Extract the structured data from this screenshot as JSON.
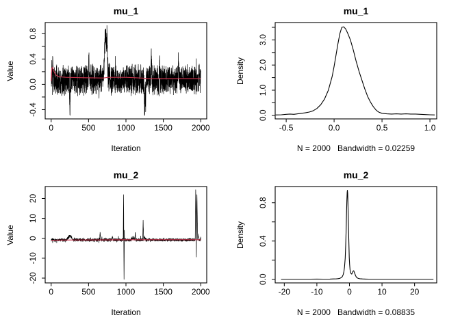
{
  "page": {
    "background": "#ffffff"
  },
  "colors": {
    "axis": "#000000",
    "trace": "#000000",
    "density": "#000000",
    "smooth_line": "#c8354d"
  },
  "chart_data": [
    {
      "id": "mu1-trace",
      "type": "line",
      "title": "mu_1",
      "xlabel": "Iteration",
      "ylabel": "Value",
      "xlim": [
        -80,
        2080
      ],
      "ylim": [
        -0.546,
        0.976
      ],
      "xticks": [
        [
          0,
          "0"
        ],
        [
          500,
          "500"
        ],
        [
          1000,
          "1000"
        ],
        [
          1500,
          "1500"
        ],
        [
          2000,
          "2000"
        ]
      ],
      "yticks": [
        [
          -0.4,
          "-0.4"
        ],
        [
          -0.2,
          ""
        ],
        [
          0,
          "0.0"
        ],
        [
          0.2,
          ""
        ],
        [
          0.4,
          "0.4"
        ],
        [
          0.6,
          ""
        ],
        [
          0.8,
          "0.8"
        ]
      ],
      "series": [
        {
          "name": "trace",
          "role": "trace",
          "color": "#000000",
          "width": 0.7,
          "generator": {
            "seed": 11,
            "n": 2000,
            "mean": 0.07,
            "amp": 0.26,
            "spike_prob": 0.04,
            "spike_amp": 0.22,
            "clamp": [
              -0.49,
              0.93
            ]
          },
          "anomalies": [
            [
              8,
              5,
              0.3
            ],
            [
              22,
              6,
              0.32
            ],
            [
              250,
              7,
              -0.55
            ],
            [
              505,
              10,
              0.34
            ],
            [
              730,
              35,
              0.8
            ],
            [
              748,
              8,
              0.3
            ],
            [
              1250,
              14,
              -0.55
            ],
            [
              1264,
              6,
              -0.34
            ],
            [
              1340,
              10,
              0.4
            ],
            [
              1452,
              8,
              0.3
            ],
            [
              1700,
              9,
              0.33
            ],
            [
              1980,
              6,
              0.25
            ]
          ]
        },
        {
          "name": "smooth",
          "role": "smooth",
          "color": "#c8354d",
          "width": 1.2,
          "points": [
            [
              1,
              0.05
            ],
            [
              8,
              0.25
            ],
            [
              18,
              0.27
            ],
            [
              35,
              0.21
            ],
            [
              60,
              0.15
            ],
            [
              100,
              0.12
            ],
            [
              200,
              0.11
            ],
            [
              400,
              0.105
            ],
            [
              700,
              0.1
            ],
            [
              760,
              0.11
            ],
            [
              1000,
              0.11
            ],
            [
              1200,
              0.1
            ],
            [
              1300,
              0.09
            ],
            [
              1600,
              0.09
            ],
            [
              2000,
              0.09
            ]
          ]
        }
      ]
    },
    {
      "id": "mu1-density",
      "type": "line",
      "title": "mu_1",
      "xlabel": "N = 2000   Bandwidth = 0.02259",
      "ylabel": "Density",
      "n": 2000,
      "bandwidth": 0.02259,
      "xlim": [
        -0.615,
        1.071
      ],
      "ylim": [
        -0.142,
        3.69
      ],
      "xticks": [
        [
          -0.5,
          "-0.5"
        ],
        [
          0,
          "0.0"
        ],
        [
          0.5,
          "0.5"
        ],
        [
          1,
          "1.0"
        ]
      ],
      "yticks": [
        [
          0,
          "0.0"
        ],
        [
          0.5,
          ""
        ],
        [
          1,
          "1.0"
        ],
        [
          1.5,
          ""
        ],
        [
          2,
          "2.0"
        ],
        [
          2.5,
          ""
        ],
        [
          3,
          "3.0"
        ],
        [
          3.5,
          ""
        ]
      ],
      "series": [
        {
          "name": "density",
          "role": "density",
          "color": "#000000",
          "width": 1.1,
          "points": [
            [
              -0.61,
              0.015
            ],
            [
              -0.55,
              0.02
            ],
            [
              -0.5,
              0.04
            ],
            [
              -0.46,
              0.05
            ],
            [
              -0.42,
              0.04
            ],
            [
              -0.38,
              0.06
            ],
            [
              -0.34,
              0.08
            ],
            [
              -0.3,
              0.1
            ],
            [
              -0.26,
              0.13
            ],
            [
              -0.22,
              0.18
            ],
            [
              -0.18,
              0.27
            ],
            [
              -0.14,
              0.42
            ],
            [
              -0.1,
              0.65
            ],
            [
              -0.06,
              1.0
            ],
            [
              -0.02,
              1.55
            ],
            [
              0,
              1.95
            ],
            [
              0.02,
              2.4
            ],
            [
              0.04,
              2.85
            ],
            [
              0.06,
              3.25
            ],
            [
              0.08,
              3.5
            ],
            [
              0.1,
              3.52
            ],
            [
              0.12,
              3.44
            ],
            [
              0.14,
              3.28
            ],
            [
              0.17,
              3.0
            ],
            [
              0.2,
              2.6
            ],
            [
              0.23,
              2.15
            ],
            [
              0.26,
              1.75
            ],
            [
              0.29,
              1.4
            ],
            [
              0.32,
              1.05
            ],
            [
              0.35,
              0.75
            ],
            [
              0.38,
              0.52
            ],
            [
              0.41,
              0.34
            ],
            [
              0.44,
              0.2
            ],
            [
              0.47,
              0.12
            ],
            [
              0.5,
              0.08
            ],
            [
              0.55,
              0.06
            ],
            [
              0.6,
              0.05
            ],
            [
              0.65,
              0.06
            ],
            [
              0.7,
              0.05
            ],
            [
              0.75,
              0.06
            ],
            [
              0.8,
              0.05
            ],
            [
              0.85,
              0.05
            ],
            [
              0.9,
              0.04
            ],
            [
              0.95,
              0.03
            ],
            [
              1.0,
              0.02
            ],
            [
              1.05,
              0.015
            ]
          ]
        }
      ]
    },
    {
      "id": "mu2-trace",
      "type": "line",
      "title": "mu_2",
      "xlabel": "Iteration",
      "ylabel": "Value",
      "xlim": [
        -80,
        2080
      ],
      "ylim": [
        -22.4,
        26.0
      ],
      "xticks": [
        [
          0,
          "0"
        ],
        [
          500,
          "500"
        ],
        [
          1000,
          "1000"
        ],
        [
          1500,
          "1500"
        ],
        [
          2000,
          "2000"
        ]
      ],
      "yticks": [
        [
          -20,
          "-20"
        ],
        [
          -10,
          "-10"
        ],
        [
          0,
          "0"
        ],
        [
          10,
          "10"
        ],
        [
          20,
          "20"
        ]
      ],
      "series": [
        {
          "name": "trace",
          "role": "trace",
          "color": "#000000",
          "width": 0.7,
          "generator": {
            "seed": 23,
            "n": 2000,
            "mean": -0.8,
            "amp": 0.85,
            "spike_prob": 0.03,
            "spike_amp": 1.5,
            "clamp": [
              -20.6,
              24.4
            ]
          },
          "anomalies": [
            [
              250,
              45,
              2.2
            ],
            [
              655,
              8,
              3.9
            ],
            [
              820,
              12,
              1.3
            ],
            [
              968,
              5,
              22.6
            ],
            [
              974,
              4,
              -19.9
            ],
            [
              1095,
              25,
              1.2
            ],
            [
              1125,
              7,
              3.5
            ],
            [
              1230,
              6,
              9.9
            ],
            [
              1248,
              18,
              1.6
            ],
            [
              1933,
              7,
              25.4
            ],
            [
              1941,
              5,
              -7.3
            ],
            [
              1949,
              9,
              22.0
            ],
            [
              1960,
              16,
              3.2
            ]
          ]
        },
        {
          "name": "smooth",
          "role": "smooth",
          "color": "#c8354d",
          "width": 1.2,
          "points": [
            [
              1,
              -1.0
            ],
            [
              100,
              -0.9
            ],
            [
              300,
              -0.85
            ],
            [
              600,
              -0.8
            ],
            [
              1000,
              -0.75
            ],
            [
              1500,
              -0.72
            ],
            [
              2000,
              -0.7
            ]
          ]
        }
      ]
    },
    {
      "id": "mu2-density",
      "type": "line",
      "title": "mu_2",
      "xlabel": "N = 2000   Bandwidth = 0.08835",
      "ylabel": "Density",
      "n": 2000,
      "bandwidth": 0.08835,
      "xlim": [
        -22.8,
        26.8
      ],
      "ylim": [
        -0.0373,
        0.9693
      ],
      "xticks": [
        [
          -20,
          "-20"
        ],
        [
          -10,
          "-10"
        ],
        [
          0,
          "0"
        ],
        [
          10,
          "10"
        ],
        [
          20,
          "20"
        ]
      ],
      "yticks": [
        [
          0,
          "0.0"
        ],
        [
          0.2,
          ""
        ],
        [
          0.4,
          "0.4"
        ],
        [
          0.6,
          ""
        ],
        [
          0.8,
          "0.8"
        ]
      ],
      "series": [
        {
          "name": "density",
          "role": "density",
          "color": "#000000",
          "width": 1.1,
          "points": [
            [
              -21,
              0.002
            ],
            [
              -18,
              0.002
            ],
            [
              -15,
              0.002
            ],
            [
              -12,
              0.002
            ],
            [
              -10,
              0.003
            ],
            [
              -8,
              0.002
            ],
            [
              -6,
              0.003
            ],
            [
              -5,
              0.004
            ],
            [
              -4,
              0.005
            ],
            [
              -3.5,
              0.007
            ],
            [
              -3,
              0.01
            ],
            [
              -2.6,
              0.016
            ],
            [
              -2.2,
              0.028
            ],
            [
              -1.9,
              0.05
            ],
            [
              -1.7,
              0.08
            ],
            [
              -1.5,
              0.13
            ],
            [
              -1.3,
              0.22
            ],
            [
              -1.15,
              0.35
            ],
            [
              -1.0,
              0.52
            ],
            [
              -0.9,
              0.68
            ],
            [
              -0.8,
              0.82
            ],
            [
              -0.7,
              0.91
            ],
            [
              -0.62,
              0.93
            ],
            [
              -0.55,
              0.9
            ],
            [
              -0.45,
              0.8
            ],
            [
              -0.35,
              0.64
            ],
            [
              -0.25,
              0.48
            ],
            [
              -0.15,
              0.34
            ],
            [
              -0.05,
              0.23
            ],
            [
              0.05,
              0.16
            ],
            [
              0.2,
              0.1
            ],
            [
              0.35,
              0.075
            ],
            [
              0.5,
              0.06
            ],
            [
              0.7,
              0.055
            ],
            [
              0.9,
              0.07
            ],
            [
              1.1,
              0.085
            ],
            [
              1.3,
              0.09
            ],
            [
              1.5,
              0.075
            ],
            [
              1.7,
              0.055
            ],
            [
              1.9,
              0.038
            ],
            [
              2.1,
              0.025
            ],
            [
              2.4,
              0.015
            ],
            [
              2.8,
              0.009
            ],
            [
              3.2,
              0.006
            ],
            [
              4,
              0.004
            ],
            [
              5,
              0.003
            ],
            [
              6,
              0.002
            ],
            [
              8,
              0.002
            ],
            [
              10,
              0.002
            ],
            [
              12,
              0.002
            ],
            [
              15,
              0.002
            ],
            [
              18,
              0.002
            ],
            [
              21,
              0.002
            ],
            [
              24,
              0.002
            ],
            [
              25.8,
              0.002
            ]
          ]
        }
      ]
    }
  ]
}
